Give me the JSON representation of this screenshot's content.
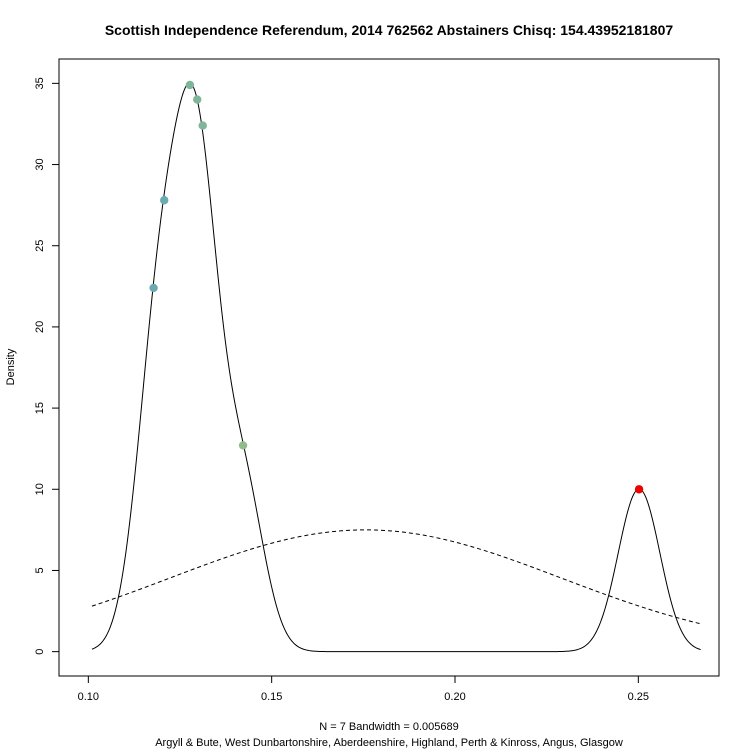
{
  "chart_data": {
    "type": "line",
    "title": "Scottish Independence Referendum, 2014 762562 Abstainers Chisq: 154.43952181807",
    "ylabel": "Density",
    "xlabel_line1": "N = 7   Bandwidth = 0.005689",
    "xlabel_line2": "Argyll & Bute, West Dunbartonshire, Aberdeenshire, Highland, Perth & Kinross, Angus, Glasgow",
    "xlim": [
      0.092,
      0.272
    ],
    "ylim": [
      -1.5,
      36.5
    ],
    "x_ticks": [
      {
        "value": 0.1,
        "label": "0.10"
      },
      {
        "value": 0.15,
        "label": "0.15"
      },
      {
        "value": 0.2,
        "label": "0.20"
      },
      {
        "value": 0.25,
        "label": "0.25"
      }
    ],
    "y_ticks": [
      {
        "value": 0,
        "label": "0"
      },
      {
        "value": 5,
        "label": "5"
      },
      {
        "value": 10,
        "label": "10"
      },
      {
        "value": 15,
        "label": "15"
      },
      {
        "value": 20,
        "label": "20"
      },
      {
        "value": 25,
        "label": "25"
      },
      {
        "value": 30,
        "label": "30"
      },
      {
        "value": 35,
        "label": "35"
      }
    ],
    "bandwidth": 0.005689,
    "kde_samples": [
      0.1178,
      0.1207,
      0.1277,
      0.1297,
      0.1312,
      0.1422,
      0.2502
    ],
    "kde_range": [
      0.101,
      0.267
    ],
    "normal_curve": {
      "mean": 0.1756,
      "sd": 0.0532,
      "range": [
        0.101,
        0.267
      ],
      "style": "dashed"
    },
    "points": [
      {
        "x": 0.1178,
        "y": 22.4,
        "color": "#6aaab0"
      },
      {
        "x": 0.1207,
        "y": 27.8,
        "color": "#6aaab0"
      },
      {
        "x": 0.1277,
        "y": 34.9,
        "color": "#7fb69a"
      },
      {
        "x": 0.1297,
        "y": 34.0,
        "color": "#7fb69a"
      },
      {
        "x": 0.1312,
        "y": 32.4,
        "color": "#7fb69a"
      },
      {
        "x": 0.1422,
        "y": 12.7,
        "color": "#8fbc8a"
      },
      {
        "x": 0.2502,
        "y": 10.0,
        "color": "#ee0000"
      }
    ]
  }
}
